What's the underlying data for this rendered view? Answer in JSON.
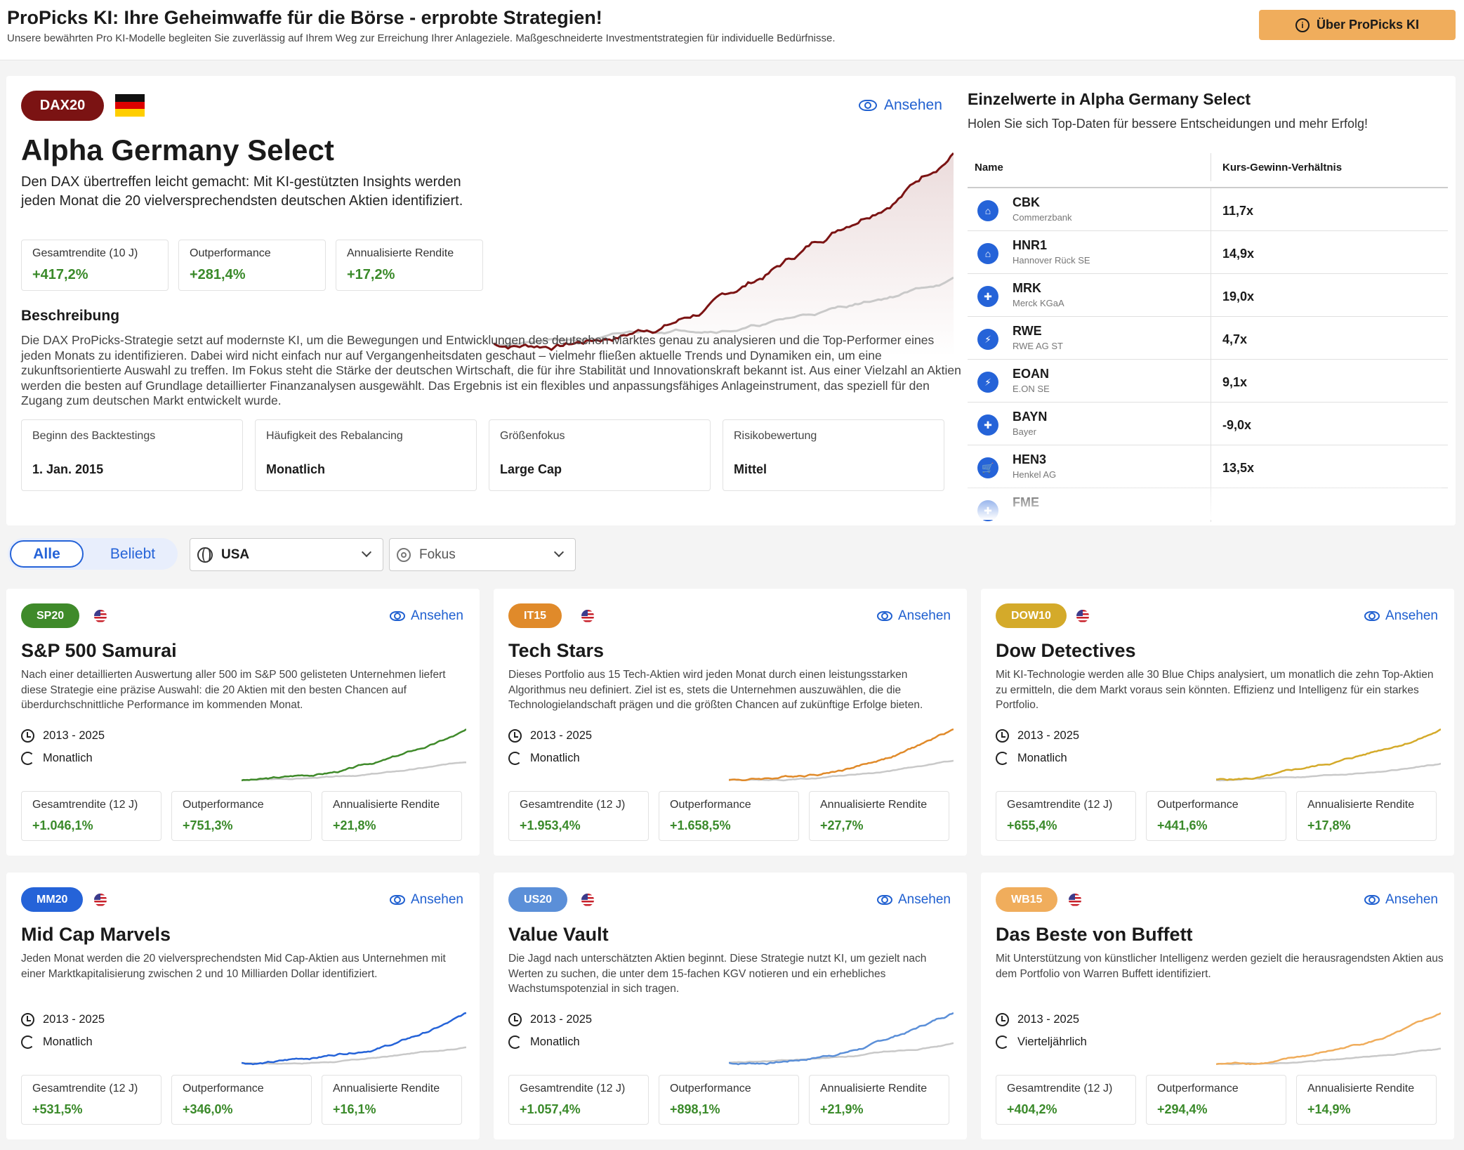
{
  "header": {
    "title": "ProPicks KI: Ihre Geheimwaffe für die Börse - erprobte Strategien!",
    "subtitle": "Unsere bewährten Pro KI-Modelle begleiten Sie zuverlässig auf Ihrem Weg zur Erreichung Ihrer Anlageziele. Maßgeschneiderte Investmentstrategien für individuelle Bedürfnisse.",
    "about_button": "Über ProPicks KI"
  },
  "hero": {
    "badge": "DAX20",
    "badge_color": "#7b1313",
    "view_label": "Ansehen",
    "title": "Alpha Germany Select",
    "description": "Den DAX übertreffen leicht gemacht: Mit KI-gestützten Insights werden jeden Monat die 20 vielversprechendsten deutschen Aktien identifiziert.",
    "metrics": [
      {
        "label": "Gesamtrendite (10 J)",
        "value": "+417,2%"
      },
      {
        "label": "Outperformance",
        "value": "+281,4%"
      },
      {
        "label": "Annualisierte Rendite",
        "value": "+17,2%"
      }
    ],
    "beschreibung_heading": "Beschreibung",
    "beschreibung": "Die DAX ProPicks-Strategie setzt auf modernste KI, um die Bewegungen und Entwicklungen des deutschen Marktes genau zu analysieren und die Top-Performer eines jeden Monats zu identifizieren. Dabei wird nicht einfach nur auf Vergangenheitsdaten geschaut – vielmehr fließen aktuelle Trends und Dynamiken ein, um eine zukunftsorientierte Auswahl zu treffen. Im Fokus steht die Stärke der deutschen Wirtschaft, die für ihre Stabilität und Innovationskraft bekannt ist. Aus einer Vielzahl an Aktien werden die besten auf Grundlage detaillierter Finanzanalysen ausgewählt. Das Ergebnis ist ein flexibles und anpassungsfähiges Anlageinstrument, das speziell für den Zugang zum deutschen Markt entwickelt wurde.",
    "facts": [
      {
        "label": "Beginn des Backtestings",
        "value": "1. Jan. 2015"
      },
      {
        "label": "Häufigkeit des Rebalancing",
        "value": "Monatlich"
      },
      {
        "label": "Größenfokus",
        "value": "Large Cap"
      },
      {
        "label": "Risikobewertung",
        "value": "Mittel"
      }
    ]
  },
  "einzelwerte": {
    "title": "Einzelwerte in Alpha Germany Select",
    "subtitle": "Holen Sie sich Top-Daten für bessere Entscheidungen und mehr Erfolg!",
    "col_name": "Name",
    "col_kgv": "Kurs-Gewinn-Verhältnis",
    "rows": [
      {
        "symbol": "CBK",
        "name": "Commerzbank",
        "kgv": "11,7x",
        "icon": "bank-icon"
      },
      {
        "symbol": "HNR1",
        "name": "Hannover Rück SE",
        "kgv": "14,9x",
        "icon": "bank-icon"
      },
      {
        "symbol": "MRK",
        "name": "Merck KGaA",
        "kgv": "19,0x",
        "icon": "stethoscope-icon"
      },
      {
        "symbol": "RWE",
        "name": "RWE AG ST",
        "kgv": "4,7x",
        "icon": "utility-icon"
      },
      {
        "symbol": "EOAN",
        "name": "E.ON SE",
        "kgv": "9,1x",
        "icon": "utility-icon"
      },
      {
        "symbol": "BAYN",
        "name": "Bayer",
        "kgv": "-9,0x",
        "icon": "stethoscope-icon"
      },
      {
        "symbol": "HEN3",
        "name": "Henkel AG",
        "kgv": "13,5x",
        "icon": "cart-icon"
      },
      {
        "symbol": "FME",
        "name": "",
        "kgv": "",
        "icon": "stethoscope-icon"
      }
    ]
  },
  "filters": {
    "tab_all": "Alle",
    "tab_popular": "Beliebt",
    "region": "USA",
    "focus_placeholder": "Fokus"
  },
  "cards": [
    {
      "badge": "SP20",
      "color": "#3f8a2a",
      "title": "S&P 500 Samurai",
      "desc": "Nach einer detaillierten Auswertung aller 500 im S&P 500 gelisteten Unternehmen liefert diese Strategie eine präzise Auswahl: die 20 Aktien mit den besten Chancen auf überdurchschnittliche Performance im kommenden Monat.",
      "period": "2013 - 2025",
      "rebalance": "Monatlich",
      "m1_label": "Gesamtrendite (12 J)",
      "m1": "+1.046,1%",
      "m2_label": "Outperformance",
      "m2": "+751,3%",
      "m3_label": "Annualisierte Rendite",
      "m3": "+21,8%",
      "view": "Ansehen"
    },
    {
      "badge": "IT15",
      "color": "#e08a2a",
      "title": "Tech Stars",
      "desc": "Dieses Portfolio aus 15 Tech-Aktien wird jeden Monat durch einen leistungsstarken Algorithmus neu definiert. Ziel ist es, stets die Unternehmen auszuwählen, die die Technologielandschaft prägen und die größten Chancen auf zukünftige Erfolge bieten.",
      "period": "2013 - 2025",
      "rebalance": "Monatlich",
      "m1_label": "Gesamtrendite (12 J)",
      "m1": "+1.953,4%",
      "m2_label": "Outperformance",
      "m2": "+1.658,5%",
      "m3_label": "Annualisierte Rendite",
      "m3": "+27,7%",
      "view": "Ansehen"
    },
    {
      "badge": "DOW10",
      "color": "#d4aa2a",
      "title": "Dow Detectives",
      "desc": "Mit KI-Technologie werden alle 30 Blue Chips analysiert, um monatlich die zehn Top-Aktien zu ermitteln, die dem Markt voraus sein könnten. Effizienz und Intelligenz für ein starkes Portfolio.",
      "period": "2013 - 2025",
      "rebalance": "Monatlich",
      "m1_label": "Gesamtrendite (12 J)",
      "m1": "+655,4%",
      "m2_label": "Outperformance",
      "m2": "+441,6%",
      "m3_label": "Annualisierte Rendite",
      "m3": "+17,8%",
      "view": "Ansehen"
    },
    {
      "badge": "MM20",
      "color": "#2563d8",
      "title": "Mid Cap Marvels",
      "desc": "Jeden Monat werden die 20 vielversprechendsten Mid Cap-Aktien aus Unternehmen mit einer Marktkapitalisierung zwischen 2 und 10 Milliarden Dollar identifiziert.",
      "period": "2013 - 2025",
      "rebalance": "Monatlich",
      "m1_label": "Gesamtrendite (12 J)",
      "m1": "+531,5%",
      "m2_label": "Outperformance",
      "m2": "+346,0%",
      "m3_label": "Annualisierte Rendite",
      "m3": "+16,1%",
      "view": "Ansehen"
    },
    {
      "badge": "US20",
      "color": "#5b8fd8",
      "title": "Value Vault",
      "desc": "Die Jagd nach unterschätzten Aktien beginnt. Diese Strategie nutzt KI, um gezielt nach Werten zu suchen, die unter dem 15-fachen KGV notieren und ein erhebliches Wachstumspotenzial in sich tragen.",
      "period": "2013 - 2025",
      "rebalance": "Monatlich",
      "m1_label": "Gesamtrendite (12 J)",
      "m1": "+1.057,4%",
      "m2_label": "Outperformance",
      "m2": "+898,1%",
      "m3_label": "Annualisierte Rendite",
      "m3": "+21,9%",
      "view": "Ansehen"
    },
    {
      "badge": "WB15",
      "color": "#f0ad5c",
      "title": "Das Beste von Buffett",
      "desc": "Mit Unterstützung von künstlicher Intelligenz werden gezielt die herausragendsten Aktien aus dem Portfolio von Warren Buffett identifiziert.",
      "period": "2013 - 2025",
      "rebalance": "Vierteljährlich",
      "m1_label": "Gesamtrendite (12 J)",
      "m1": "+404,2%",
      "m2_label": "Outperformance",
      "m2": "+294,4%",
      "m3_label": "Annualisierte Rendite",
      "m3": "+14,9%",
      "view": "Ansehen"
    }
  ]
}
